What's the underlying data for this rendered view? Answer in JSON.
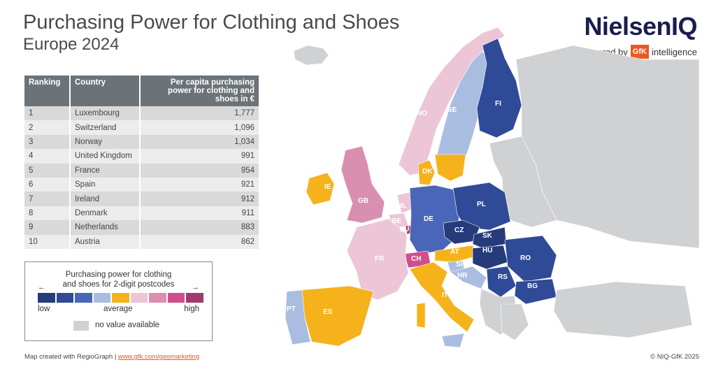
{
  "title": "Purchasing Power for Clothing and Shoes",
  "subtitle": "Europe 2024",
  "brand": {
    "name": "NielsenIQ",
    "powered_by": "powered by",
    "gfk_logo": "GfK",
    "intelligence": "intelligence"
  },
  "table": {
    "headers": [
      "Ranking",
      "Country",
      "Per capita purchasing power for clothing and shoes in €"
    ],
    "rows": [
      [
        "1",
        "Luxembourg",
        "1,777"
      ],
      [
        "2",
        "Switzerland",
        "1,096"
      ],
      [
        "3",
        "Norway",
        "1,034"
      ],
      [
        "4",
        "United Kingdom",
        "991"
      ],
      [
        "5",
        "France",
        "954"
      ],
      [
        "6",
        "Spain",
        "921"
      ],
      [
        "7",
        "Ireland",
        "912"
      ],
      [
        "8",
        "Denmark",
        "911"
      ],
      [
        "9",
        "Netherlands",
        "883"
      ],
      [
        "10",
        "Austria",
        "862"
      ]
    ]
  },
  "legend": {
    "title_line1": "Purchasing power for clothing",
    "title_line2": "and shoes for 2-digit postcodes",
    "low": "low",
    "average": "average",
    "high": "high",
    "no_value": "no value available",
    "colors": [
      "#253b7a",
      "#2f4a96",
      "#4a66b8",
      "#a9bde0",
      "#f5b21b",
      "#ecc6d6",
      "#d98fb0",
      "#cf4f8c",
      "#a33a6b"
    ],
    "no_value_color": "#cfd1d3"
  },
  "map": {
    "country_labels": [
      "NO",
      "SE",
      "FI",
      "DK",
      "IE",
      "GB",
      "NL",
      "BE",
      "LU",
      "DE",
      "PL",
      "CZ",
      "SK",
      "FR",
      "CH",
      "AT",
      "HU",
      "RO",
      "SI",
      "HR",
      "RS",
      "BG",
      "IT",
      "PT",
      "ES"
    ]
  },
  "footer": {
    "credit": "Map created with RegioGraph |",
    "link": "www.gfk.com/geomarketing",
    "copyright": "© NIQ-GfK 2025"
  }
}
